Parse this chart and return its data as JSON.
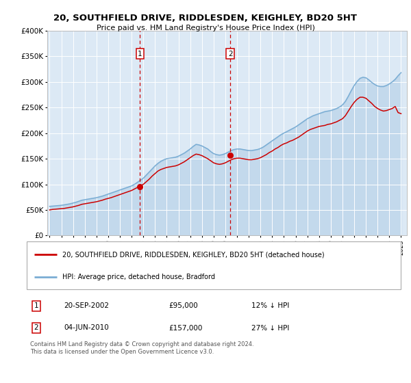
{
  "title": "20, SOUTHFIELD DRIVE, RIDDLESDEN, KEIGHLEY, BD20 5HT",
  "subtitle": "Price paid vs. HM Land Registry's House Price Index (HPI)",
  "background_color": "#ffffff",
  "plot_bg_color": "#dce9f5",
  "grid_color": "#ffffff",
  "ylim": [
    0,
    400000
  ],
  "yticks": [
    0,
    50000,
    100000,
    150000,
    200000,
    250000,
    300000,
    350000,
    400000
  ],
  "ytick_labels": [
    "£0",
    "£50K",
    "£100K",
    "£150K",
    "£200K",
    "£250K",
    "£300K",
    "£350K",
    "£400K"
  ],
  "legend_label_red": "20, SOUTHFIELD DRIVE, RIDDLESDEN, KEIGHLEY, BD20 5HT (detached house)",
  "legend_label_blue": "HPI: Average price, detached house, Bradford",
  "footnote": "Contains HM Land Registry data © Crown copyright and database right 2024.\nThis data is licensed under the Open Government Licence v3.0.",
  "sale1_date": "20-SEP-2002",
  "sale1_price": "£95,000",
  "sale1_hpi": "12% ↓ HPI",
  "sale2_date": "04-JUN-2010",
  "sale2_price": "£157,000",
  "sale2_hpi": "27% ↓ HPI",
  "sale1_year": 2002.72,
  "sale1_value": 95000,
  "sale2_year": 2010.42,
  "sale2_value": 157000,
  "red_color": "#cc0000",
  "blue_color": "#7aadd4",
  "vline_color": "#cc0000",
  "hpi_years": [
    1995.0,
    1995.25,
    1995.5,
    1995.75,
    1996.0,
    1996.25,
    1996.5,
    1996.75,
    1997.0,
    1997.25,
    1997.5,
    1997.75,
    1998.0,
    1998.25,
    1998.5,
    1998.75,
    1999.0,
    1999.25,
    1999.5,
    1999.75,
    2000.0,
    2000.25,
    2000.5,
    2000.75,
    2001.0,
    2001.25,
    2001.5,
    2001.75,
    2002.0,
    2002.25,
    2002.5,
    2002.75,
    2003.0,
    2003.25,
    2003.5,
    2003.75,
    2004.0,
    2004.25,
    2004.5,
    2004.75,
    2005.0,
    2005.25,
    2005.5,
    2005.75,
    2006.0,
    2006.25,
    2006.5,
    2006.75,
    2007.0,
    2007.25,
    2007.5,
    2007.75,
    2008.0,
    2008.25,
    2008.5,
    2008.75,
    2009.0,
    2009.25,
    2009.5,
    2009.75,
    2010.0,
    2010.25,
    2010.5,
    2010.75,
    2011.0,
    2011.25,
    2011.5,
    2011.75,
    2012.0,
    2012.25,
    2012.5,
    2012.75,
    2013.0,
    2013.25,
    2013.5,
    2013.75,
    2014.0,
    2014.25,
    2014.5,
    2014.75,
    2015.0,
    2015.25,
    2015.5,
    2015.75,
    2016.0,
    2016.25,
    2016.5,
    2016.75,
    2017.0,
    2017.25,
    2017.5,
    2017.75,
    2018.0,
    2018.25,
    2018.5,
    2018.75,
    2019.0,
    2019.25,
    2019.5,
    2019.75,
    2020.0,
    2020.25,
    2020.5,
    2020.75,
    2021.0,
    2021.25,
    2021.5,
    2021.75,
    2022.0,
    2022.25,
    2022.5,
    2022.75,
    2023.0,
    2023.25,
    2023.5,
    2023.75,
    2024.0,
    2024.25,
    2024.5,
    2024.75,
    2025.0
  ],
  "hpi_values": [
    57000,
    57500,
    58000,
    58500,
    59000,
    60000,
    61000,
    62000,
    63500,
    65000,
    67000,
    69000,
    70000,
    71000,
    72000,
    73000,
    74000,
    75500,
    77000,
    79000,
    81000,
    83000,
    85000,
    87000,
    89000,
    91000,
    93000,
    95000,
    97000,
    100000,
    104000,
    108000,
    112000,
    118000,
    124000,
    130000,
    136000,
    141000,
    145000,
    148000,
    150000,
    151000,
    152000,
    153000,
    155000,
    158000,
    161000,
    165000,
    169000,
    174000,
    178000,
    177000,
    175000,
    172000,
    169000,
    164000,
    160000,
    158000,
    157000,
    158000,
    160000,
    163000,
    166000,
    168000,
    169000,
    169000,
    168000,
    167000,
    166000,
    166000,
    167000,
    168000,
    170000,
    173000,
    177000,
    181000,
    185000,
    189000,
    193000,
    197000,
    200000,
    203000,
    206000,
    209000,
    212000,
    216000,
    220000,
    224000,
    228000,
    231000,
    234000,
    236000,
    238000,
    240000,
    242000,
    243000,
    244000,
    246000,
    248000,
    251000,
    255000,
    262000,
    272000,
    283000,
    293000,
    301000,
    307000,
    309000,
    308000,
    304000,
    299000,
    295000,
    292000,
    291000,
    291000,
    293000,
    296000,
    300000,
    305000,
    312000,
    318000
  ],
  "red_years": [
    1995.0,
    1995.25,
    1995.5,
    1995.75,
    1996.0,
    1996.25,
    1996.5,
    1996.75,
    1997.0,
    1997.25,
    1997.5,
    1997.75,
    1998.0,
    1998.25,
    1998.5,
    1998.75,
    1999.0,
    1999.25,
    1999.5,
    1999.75,
    2000.0,
    2000.25,
    2000.5,
    2000.75,
    2001.0,
    2001.25,
    2001.5,
    2001.75,
    2002.0,
    2002.25,
    2002.5,
    2002.75,
    2003.0,
    2003.25,
    2003.5,
    2003.75,
    2004.0,
    2004.25,
    2004.5,
    2004.75,
    2005.0,
    2005.25,
    2005.5,
    2005.75,
    2006.0,
    2006.25,
    2006.5,
    2006.75,
    2007.0,
    2007.25,
    2007.5,
    2007.75,
    2008.0,
    2008.25,
    2008.5,
    2008.75,
    2009.0,
    2009.25,
    2009.5,
    2009.75,
    2010.0,
    2010.25,
    2010.5,
    2010.75,
    2011.0,
    2011.25,
    2011.5,
    2011.75,
    2012.0,
    2012.25,
    2012.5,
    2012.75,
    2013.0,
    2013.25,
    2013.5,
    2013.75,
    2014.0,
    2014.25,
    2014.5,
    2014.75,
    2015.0,
    2015.25,
    2015.5,
    2015.75,
    2016.0,
    2016.25,
    2016.5,
    2016.75,
    2017.0,
    2017.25,
    2017.5,
    2017.75,
    2018.0,
    2018.25,
    2018.5,
    2018.75,
    2019.0,
    2019.25,
    2019.5,
    2019.75,
    2020.0,
    2020.25,
    2020.5,
    2020.75,
    2021.0,
    2021.25,
    2021.5,
    2021.75,
    2022.0,
    2022.25,
    2022.5,
    2022.75,
    2023.0,
    2023.25,
    2023.5,
    2023.75,
    2024.0,
    2024.25,
    2024.5,
    2024.75,
    2025.0
  ],
  "red_values": [
    50000,
    51000,
    51500,
    52000,
    52500,
    53000,
    54000,
    55000,
    56000,
    57500,
    59000,
    61000,
    62000,
    63000,
    64000,
    65000,
    66000,
    67500,
    69000,
    71000,
    72500,
    74000,
    76000,
    78000,
    80000,
    82000,
    84000,
    86000,
    88000,
    91000,
    94000,
    97000,
    100000,
    105000,
    110000,
    116000,
    121000,
    126000,
    129000,
    131000,
    133000,
    134000,
    135000,
    136000,
    138000,
    141000,
    144000,
    148000,
    152000,
    156000,
    159000,
    158000,
    156000,
    153000,
    150000,
    146000,
    142000,
    140000,
    139000,
    140000,
    142000,
    145000,
    148000,
    150000,
    151000,
    151000,
    150000,
    149000,
    148000,
    148000,
    149000,
    150000,
    152000,
    155000,
    158000,
    162000,
    165000,
    169000,
    172000,
    176000,
    179000,
    181000,
    184000,
    186000,
    189000,
    192000,
    196000,
    200000,
    204000,
    207000,
    209000,
    211000,
    213000,
    214000,
    215000,
    217000,
    218000,
    220000,
    222000,
    225000,
    228000,
    234000,
    243000,
    252000,
    260000,
    266000,
    270000,
    270000,
    268000,
    263000,
    258000,
    252000,
    248000,
    245000,
    243000,
    244000,
    246000,
    248000,
    252000,
    240000,
    238000
  ],
  "xtick_years": [
    1995,
    1996,
    1997,
    1998,
    1999,
    2000,
    2001,
    2002,
    2003,
    2004,
    2005,
    2006,
    2007,
    2008,
    2009,
    2010,
    2011,
    2012,
    2013,
    2014,
    2015,
    2016,
    2017,
    2018,
    2019,
    2020,
    2021,
    2022,
    2023,
    2024,
    2025
  ]
}
